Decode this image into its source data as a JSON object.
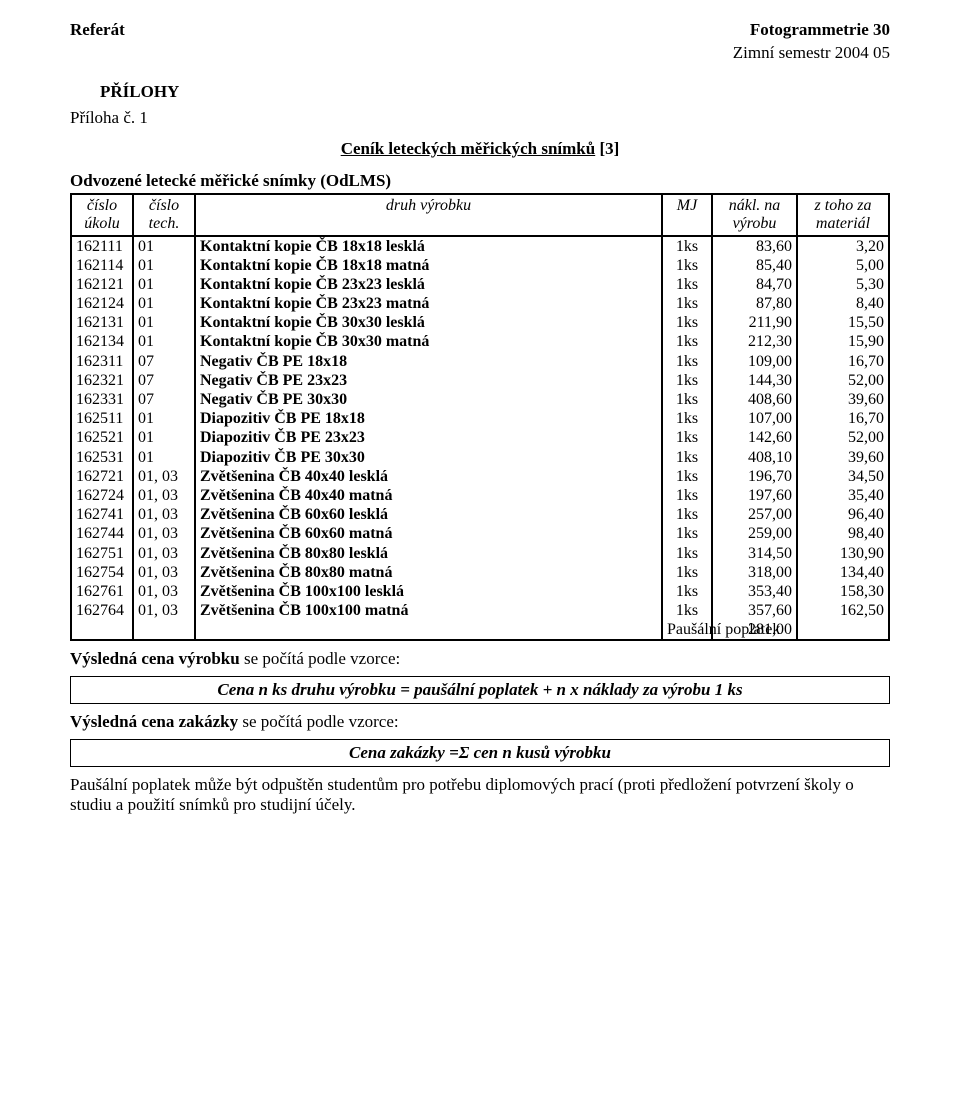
{
  "header": {
    "left": "Referát",
    "right": "Fotogrammetrie 30",
    "sub": "Zimní semestr 2004 05"
  },
  "section": "PŘÍLOHY",
  "attachment": "Příloha č. 1",
  "title_underline": "Ceník leteckých měřických snímků",
  "title_ref": " [3]",
  "subtitle": "Odvozené letecké měřické snímky (OdLMS)",
  "columns": {
    "ukolu": "číslo úkolu",
    "tech": "číslo tech.",
    "druh": "druh výrobku",
    "mj": "MJ",
    "nakl": "nákl. na výrobu",
    "mat": "z toho za materiál"
  },
  "rows": [
    {
      "u": "162111",
      "t": "01",
      "d": "Kontaktní kopie ČB 18x18 lesklá",
      "m": "1ks",
      "n": "83,60",
      "z": "3,20"
    },
    {
      "u": "162114",
      "t": "01",
      "d": "Kontaktní kopie ČB 18x18 matná",
      "m": "1ks",
      "n": "85,40",
      "z": "5,00"
    },
    {
      "u": "162121",
      "t": "01",
      "d": "Kontaktní kopie ČB 23x23 lesklá",
      "m": "1ks",
      "n": "84,70",
      "z": "5,30"
    },
    {
      "u": "162124",
      "t": "01",
      "d": "Kontaktní kopie ČB 23x23 matná",
      "m": "1ks",
      "n": "87,80",
      "z": "8,40"
    },
    {
      "u": "162131",
      "t": "01",
      "d": "Kontaktní kopie ČB 30x30 lesklá",
      "m": "1ks",
      "n": "211,90",
      "z": "15,50"
    },
    {
      "u": "162134",
      "t": "01",
      "d": "Kontaktní kopie ČB 30x30 matná",
      "m": "1ks",
      "n": "212,30",
      "z": "15,90"
    },
    {
      "u": "162311",
      "t": "07",
      "d": "Negativ ČB PE 18x18",
      "m": "1ks",
      "n": "109,00",
      "z": "16,70"
    },
    {
      "u": "162321",
      "t": "07",
      "d": "Negativ ČB PE 23x23",
      "m": "1ks",
      "n": "144,30",
      "z": "52,00"
    },
    {
      "u": "162331",
      "t": "07",
      "d": "Negativ ČB PE 30x30",
      "m": "1ks",
      "n": "408,60",
      "z": "39,60"
    },
    {
      "u": "162511",
      "t": "01",
      "d": "Diapozitiv ČB PE 18x18",
      "m": "1ks",
      "n": "107,00",
      "z": "16,70"
    },
    {
      "u": "162521",
      "t": "01",
      "d": "Diapozitiv ČB PE 23x23",
      "m": "1ks",
      "n": "142,60",
      "z": "52,00"
    },
    {
      "u": "162531",
      "t": "01",
      "d": "Diapozitiv ČB PE 30x30",
      "m": "1ks",
      "n": "408,10",
      "z": "39,60"
    },
    {
      "u": "162721",
      "t": "01, 03",
      "d": "Zvětšenina ČB 40x40 lesklá",
      "m": "1ks",
      "n": "196,70",
      "z": "34,50"
    },
    {
      "u": "162724",
      "t": "01, 03",
      "d": "Zvětšenina ČB 40x40 matná",
      "m": "1ks",
      "n": "197,60",
      "z": "35,40"
    },
    {
      "u": "162741",
      "t": "01, 03",
      "d": "Zvětšenina ČB 60x60 lesklá",
      "m": "1ks",
      "n": "257,00",
      "z": "96,40"
    },
    {
      "u": "162744",
      "t": "01, 03",
      "d": "Zvětšenina ČB 60x60 matná",
      "m": "1ks",
      "n": "259,00",
      "z": "98,40"
    },
    {
      "u": "162751",
      "t": "01, 03",
      "d": "Zvětšenina ČB 80x80 lesklá",
      "m": "1ks",
      "n": "314,50",
      "z": "130,90"
    },
    {
      "u": "162754",
      "t": "01, 03",
      "d": "Zvětšenina ČB 80x80 matná",
      "m": "1ks",
      "n": "318,00",
      "z": "134,40"
    },
    {
      "u": "162761",
      "t": "01, 03",
      "d": "Zvětšenina ČB 100x100 lesklá",
      "m": "1ks",
      "n": "353,40",
      "z": "158,30"
    },
    {
      "u": "162764",
      "t": "01, 03",
      "d": "Zvětšenina ČB 100x100 matná",
      "m": "1ks",
      "n": "357,60",
      "z": "162,50"
    }
  ],
  "fee": {
    "label": "Paušální poplatek",
    "value": "281,00"
  },
  "result_product_label": "Výsledná cena výrobku",
  "result_product_suffix": " se počítá podle vzorce:",
  "formula_product": "Cena n ks druhu výrobku = paušální poplatek + n  x  náklady za výrobu 1 ks",
  "result_order_label": "Výsledná cena zakázky",
  "result_order_suffix": " se počítá podle vzorce:",
  "formula_order": "Cena zakázky =Σ cen  n kusů výrobku",
  "bottom": "Paušální poplatek může být odpuštěn studentům pro potřebu diplomových prací (proti předložení potvrzení školy o studiu a použití snímků pro studijní účely."
}
